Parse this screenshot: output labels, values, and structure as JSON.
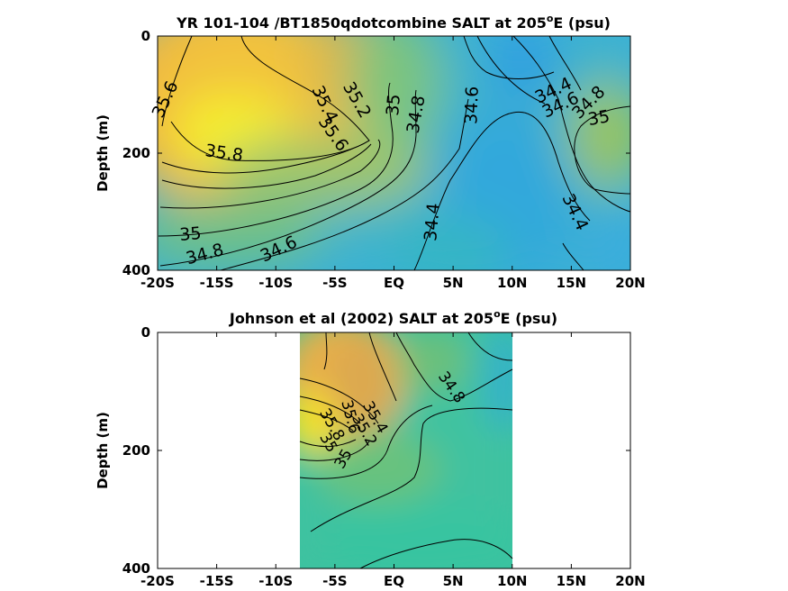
{
  "chart_data": [
    {
      "type": "heatmap",
      "title_main": "YR 101-104 /BT1850qdotcombine SALT at 205",
      "title_sup": "o",
      "title_end": "E (psu)",
      "ylabel": "Depth (m)",
      "xlabel": "",
      "x_range": [
        -20,
        20
      ],
      "y_range": [
        0,
        400
      ],
      "y_reversed": true,
      "x_ticks": [
        -20,
        -15,
        -10,
        -5,
        0,
        5,
        10,
        15,
        20
      ],
      "x_tick_labels": [
        "-20S",
        "-15S",
        "-10S",
        "-5S",
        "EQ",
        "5N",
        "10N",
        "15N",
        "20N"
      ],
      "y_ticks": [
        0,
        200,
        400
      ],
      "y_tick_labels": [
        "0",
        "200",
        "400"
      ],
      "contour_levels": [
        34.4,
        34.6,
        34.8,
        35,
        35.2,
        35.4,
        35.6,
        35.8
      ],
      "contour_labels": [
        {
          "text": "35.6",
          "x": -19,
          "y": 110,
          "angle": -65
        },
        {
          "text": "35.4",
          "x": -9.5,
          "y": 125,
          "angle": 65
        },
        {
          "text": "35.2",
          "x": -7,
          "y": 120,
          "angle": 60
        },
        {
          "text": "35",
          "x": -4.8,
          "y": 115,
          "angle": -85
        },
        {
          "text": "34.8",
          "x": -2.8,
          "y": 128,
          "angle": -80
        },
        {
          "text": "35.6",
          "x": -12.5,
          "y": 160,
          "angle": 55
        },
        {
          "text": "35.8",
          "x": -14.5,
          "y": 200,
          "angle": 8
        },
        {
          "text": "34.6",
          "x": 3.2,
          "y": 115,
          "angle": -88
        },
        {
          "text": "34.4",
          "x": 12.5,
          "y": 100,
          "angle": -25
        },
        {
          "text": "34.6",
          "x": 13.2,
          "y": 118,
          "angle": -25
        },
        {
          "text": "34.8",
          "x": 14.3,
          "y": 118,
          "angle": -45
        },
        {
          "text": "35",
          "x": 15.5,
          "y": 140,
          "angle": -10
        },
        {
          "text": "34.4",
          "x": 6.4,
          "y": 320,
          "angle": -85
        },
        {
          "text": "34.4",
          "x": 13.5,
          "y": 300,
          "angle": 65
        },
        {
          "text": "35",
          "x": -17.3,
          "y": 340,
          "angle": -5
        },
        {
          "text": "34.8",
          "x": -16.2,
          "y": 370,
          "angle": -15
        },
        {
          "text": "34.6",
          "x": -10,
          "y": 360,
          "angle": -25
        }
      ]
    },
    {
      "type": "heatmap",
      "title_main": "Johnson et al (2002) SALT at 205",
      "title_sup": "o",
      "title_end": "E (psu)",
      "ylabel": "Depth (m)",
      "xlabel": "",
      "x_range": [
        -20,
        20
      ],
      "y_range": [
        0,
        400
      ],
      "y_reversed": true,
      "data_x_extent": [
        -8,
        10
      ],
      "x_ticks": [
        -20,
        -15,
        -10,
        -5,
        0,
        5,
        10,
        15,
        20
      ],
      "x_tick_labels": [
        "-20S",
        "-15S",
        "-10S",
        "-5S",
        "EQ",
        "5N",
        "10N",
        "15N",
        "20N"
      ],
      "y_ticks": [
        0,
        200,
        400
      ],
      "y_tick_labels": [
        "0",
        "200",
        "400"
      ],
      "contour_levels": [
        34.8,
        35,
        35.2,
        35.4,
        35.6,
        35.8
      ],
      "contour_labels": [
        {
          "text": "34.8",
          "x": 5,
          "y": 95,
          "angle": 55
        },
        {
          "text": "35",
          "x": -3.4,
          "y": 200,
          "angle": -60
        },
        {
          "text": "35.2",
          "x": -4,
          "y": 170,
          "angle": 60
        },
        {
          "text": "35.4",
          "x": -2.2,
          "y": 150,
          "angle": 60
        },
        {
          "text": "35.6",
          "x": -4.8,
          "y": 150,
          "angle": 75
        },
        {
          "text": "35.8",
          "x": -6.2,
          "y": 160,
          "angle": 60
        },
        {
          "text": "35",
          "x": -6,
          "y": 180,
          "angle": 60
        }
      ]
    }
  ]
}
